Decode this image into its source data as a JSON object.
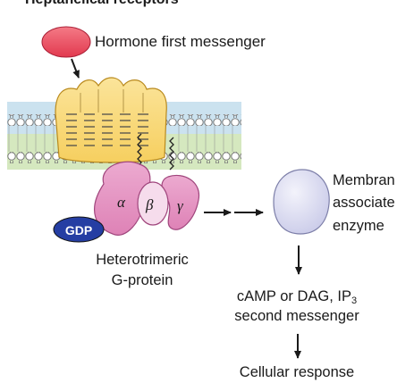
{
  "title": "Heptahelical receptors",
  "hormone_label": "Hormone first messenger",
  "enzyme_label": [
    "Membran",
    "associate",
    "enzyme"
  ],
  "gprotein_label": [
    "Heterotrimeric",
    "G-protein"
  ],
  "gdp_label": "GDP",
  "subunits": {
    "alpha": "α",
    "beta": "β",
    "gamma": "γ"
  },
  "second_messenger": {
    "line1_main": "cAMP or DAG, IP",
    "line1_sub": "3",
    "line2": "second messenger"
  },
  "response_label": "Cellular response",
  "colors": {
    "hormone": "#e2394f",
    "receptor": "#f6cf5f",
    "membrane_top": "#cbe2ef",
    "membrane_bottom": "#d5e8bf",
    "gprotein": "#de82b6",
    "gdp": "#253ea3",
    "enzyme": "#c8c9e8"
  }
}
